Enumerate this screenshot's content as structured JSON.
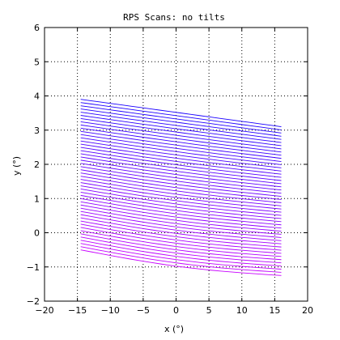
{
  "chart_data": {
    "type": "line",
    "title": "RPS Scans: no tilts",
    "xlabel": "x (°)",
    "ylabel": "y (°)",
    "xlim": [
      -20,
      20
    ],
    "ylim": [
      -2,
      6
    ],
    "xticks": [
      -20,
      -15,
      -10,
      -5,
      0,
      5,
      10,
      15,
      20
    ],
    "yticks": [
      -2,
      -1,
      0,
      1,
      2,
      3,
      4,
      5,
      6
    ],
    "grid": true,
    "grid_style": "dotted",
    "scan_lines": {
      "count": 48,
      "x_start": -14.5,
      "x_end": 16,
      "left_y_first": 3.9,
      "left_y_last": -0.5,
      "right_y_first": 3.1,
      "right_y_last": -1.25,
      "color_first": "#1a00ff",
      "color_last": "#c800ff"
    }
  }
}
